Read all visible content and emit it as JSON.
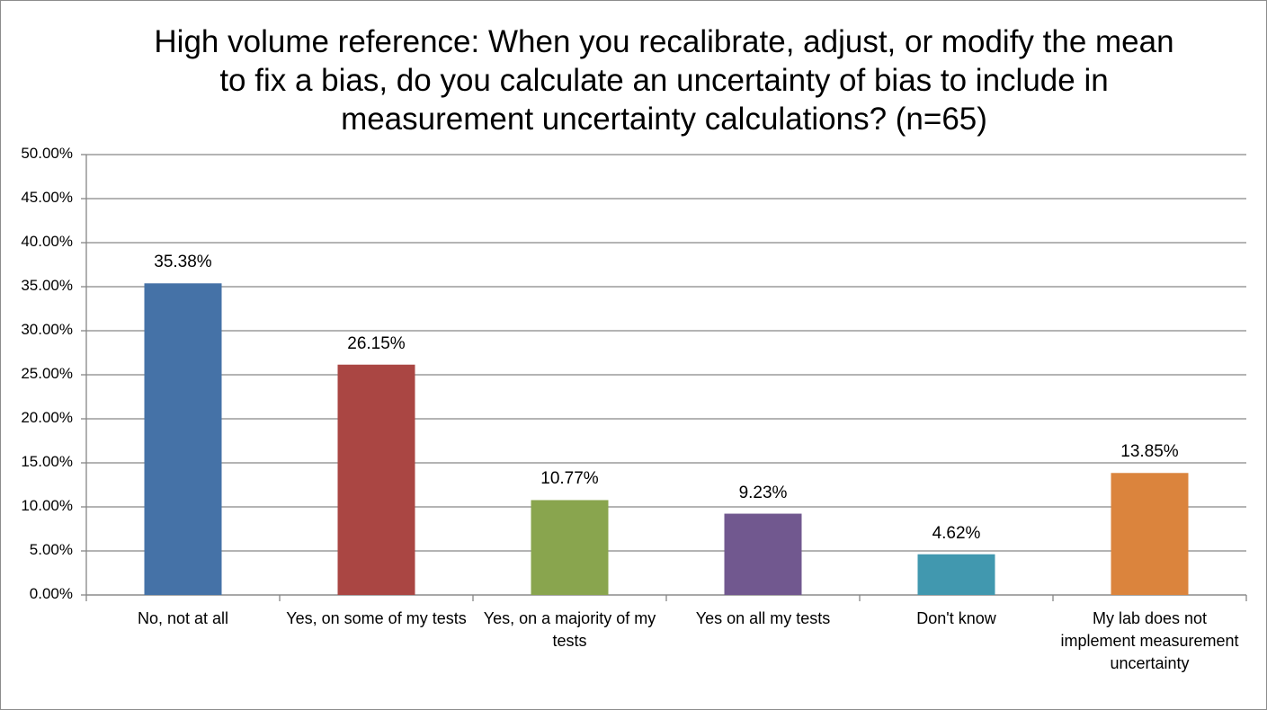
{
  "chart_data": {
    "type": "bar",
    "title": "High volume reference: When you recalibrate, adjust, or modify the mean to fix a bias, do you calculate an uncertainty of bias to include in measurement uncertainty calculations? (n=65)",
    "categories": [
      "No, not at all",
      "Yes, on some of my tests",
      "Yes, on a majority of my tests",
      "Yes on all my tests",
      "Don't know",
      "My lab does not implement measurement uncertainty"
    ],
    "values": [
      35.38,
      26.15,
      10.77,
      9.23,
      4.62,
      13.85
    ],
    "value_labels": [
      "35.38%",
      "26.15%",
      "10.77%",
      "9.23%",
      "4.62%",
      "13.85%"
    ],
    "colors": [
      "#4572a7",
      "#aa4643",
      "#89a54e",
      "#71588f",
      "#4198af",
      "#db843d"
    ],
    "ylim": [
      0,
      50
    ],
    "yticks": [
      {
        "value": 0,
        "label": "0.00%"
      },
      {
        "value": 5,
        "label": "5.00%"
      },
      {
        "value": 10,
        "label": "10.00%"
      },
      {
        "value": 15,
        "label": "15.00%"
      },
      {
        "value": 20,
        "label": "20.00%"
      },
      {
        "value": 25,
        "label": "25.00%"
      },
      {
        "value": 30,
        "label": "30.00%"
      },
      {
        "value": 35,
        "label": "35.00%"
      },
      {
        "value": 40,
        "label": "40.00%"
      },
      {
        "value": 45,
        "label": "45.00%"
      },
      {
        "value": 50,
        "label": "50.00%"
      }
    ],
    "grid": true
  }
}
